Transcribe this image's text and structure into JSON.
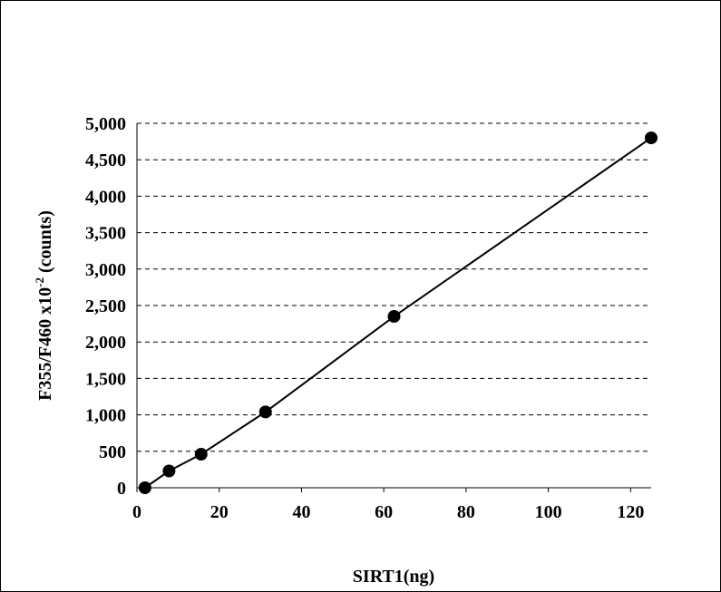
{
  "chart_data": {
    "type": "scatter",
    "title": "",
    "xlabel": "SIRT1(ng)",
    "ylabel": {
      "main": "F355/F460 x10",
      "superscript": "-2",
      "suffix": " (counts)"
    },
    "xlim": [
      0,
      125
    ],
    "ylim": [
      0,
      5000
    ],
    "x_ticks": [
      0,
      20,
      40,
      60,
      80,
      100,
      120
    ],
    "x_tick_labels": [
      "0",
      "20",
      "40",
      "60",
      "80",
      "100",
      "120"
    ],
    "y_ticks": [
      0,
      500,
      1000,
      1500,
      2000,
      2500,
      3000,
      3500,
      4000,
      4500,
      5000
    ],
    "y_tick_labels": [
      "0",
      "500",
      "1,000",
      "1,500",
      "2,000",
      "2,500",
      "3,000",
      "3,500",
      "4,000",
      "4,500",
      "5,000"
    ],
    "grid": "horizontal-dashed",
    "legend": "none",
    "series": [
      {
        "x": [
          1.95,
          7.8,
          15.6,
          31.25,
          62.5,
          125
        ],
        "y": [
          0,
          230,
          460,
          1040,
          2350,
          4800
        ],
        "marker": "filled-circle",
        "line": "solid"
      }
    ],
    "colors": {
      "marker": "#000000",
      "line": "#000000",
      "grid": "#000000"
    }
  }
}
